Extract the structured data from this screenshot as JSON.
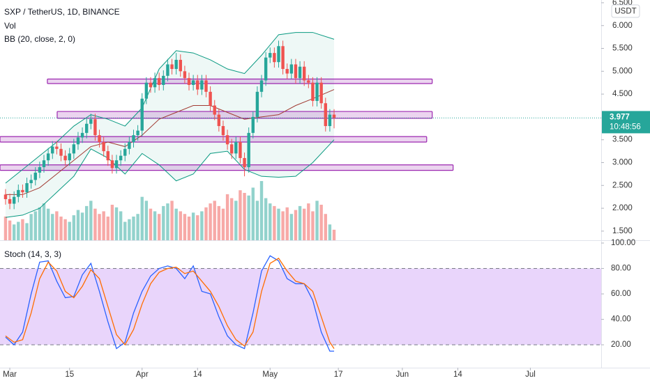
{
  "chart_data": [
    {
      "type": "candlestick",
      "title": "SXP / TetherUS, 1D, BINANCE",
      "currency": "USDT",
      "countdown": "10:48:56",
      "up_color": "#26a69a",
      "down_color": "#ef5350",
      "x": [
        -1,
        0,
        1,
        2,
        3,
        4,
        5,
        6,
        7,
        8,
        9,
        10,
        11,
        12,
        13,
        14,
        15,
        16,
        17,
        18,
        19,
        20,
        21,
        22,
        23,
        24,
        25,
        26,
        27,
        28,
        29,
        30,
        31,
        32,
        33,
        34,
        35,
        36,
        37,
        38,
        39,
        40,
        41,
        42,
        43,
        44,
        45,
        46,
        47,
        48,
        49,
        50,
        51,
        52,
        53,
        54,
        55,
        56,
        57,
        58,
        59,
        60,
        61,
        62,
        63,
        64,
        65,
        66,
        67,
        68,
        69,
        70,
        71,
        72,
        73,
        74,
        75,
        76
      ],
      "open": [
        2.3,
        2.2,
        2.1,
        2.25,
        2.4,
        2.35,
        2.55,
        2.62,
        2.78,
        2.9,
        3.05,
        3.2,
        3.35,
        3.3,
        3.15,
        3.05,
        3.2,
        3.4,
        3.55,
        3.65,
        3.85,
        3.95,
        3.6,
        3.45,
        3.25,
        3.05,
        2.88,
        3.05,
        3.15,
        3.3,
        3.45,
        3.6,
        3.7,
        4.4,
        4.75,
        4.65,
        4.85,
        4.7,
        4.9,
        5.15,
        5.05,
        5.25,
        5.0,
        4.85,
        4.7,
        4.8,
        4.6,
        4.8,
        4.55,
        4.25,
        4.05,
        3.8,
        3.6,
        3.4,
        3.2,
        3.45,
        3.1,
        2.9,
        3.65,
        4.0,
        4.55,
        4.8,
        5.3,
        5.4,
        5.2,
        5.55,
        5.05,
        4.95,
        5.15,
        4.85,
        5.1,
        4.8,
        4.75,
        4.35,
        4.75,
        4.3,
        3.8,
        4.05
      ],
      "high": [
        2.42,
        2.32,
        2.37,
        2.52,
        2.52,
        2.67,
        2.74,
        2.9,
        3.02,
        3.17,
        3.32,
        3.47,
        3.47,
        3.42,
        3.27,
        3.32,
        3.52,
        3.67,
        3.77,
        3.97,
        4.07,
        4.07,
        3.72,
        3.57,
        3.37,
        3.17,
        3.17,
        3.27,
        3.42,
        3.57,
        3.72,
        3.82,
        4.52,
        4.87,
        4.87,
        4.97,
        4.97,
        5.02,
        5.27,
        5.27,
        5.4,
        5.37,
        5.12,
        4.97,
        4.92,
        4.92,
        4.92,
        4.92,
        4.67,
        4.37,
        4.17,
        3.92,
        3.72,
        3.52,
        3.57,
        3.57,
        3.22,
        3.77,
        4.12,
        4.67,
        4.92,
        5.42,
        5.52,
        5.52,
        5.67,
        5.67,
        5.17,
        5.27,
        5.27,
        5.22,
        5.22,
        4.92,
        4.87,
        4.87,
        4.87,
        4.42,
        4.17,
        4.17
      ],
      "low": [
        2.08,
        1.98,
        1.98,
        2.13,
        2.23,
        2.23,
        2.43,
        2.5,
        2.66,
        2.78,
        2.93,
        3.08,
        3.18,
        3.03,
        2.93,
        2.93,
        3.08,
        3.28,
        3.43,
        3.53,
        3.73,
        3.48,
        3.33,
        3.13,
        2.93,
        2.76,
        2.76,
        2.93,
        3.03,
        3.18,
        3.33,
        3.48,
        3.58,
        4.28,
        4.53,
        4.53,
        4.58,
        4.58,
        4.78,
        4.93,
        4.93,
        4.88,
        4.73,
        4.58,
        4.58,
        4.48,
        4.48,
        4.43,
        4.13,
        3.93,
        3.68,
        3.48,
        3.28,
        3.08,
        3.08,
        2.98,
        2.7,
        2.78,
        3.53,
        3.88,
        4.43,
        4.68,
        5.18,
        5.08,
        5.08,
        4.93,
        4.83,
        4.83,
        4.73,
        4.73,
        4.68,
        4.63,
        4.23,
        4.23,
        4.18,
        3.68,
        3.68,
        3.75
      ],
      "close": [
        2.2,
        2.1,
        2.25,
        2.4,
        2.35,
        2.55,
        2.62,
        2.78,
        2.9,
        3.05,
        3.2,
        3.35,
        3.3,
        3.15,
        3.05,
        3.2,
        3.4,
        3.55,
        3.65,
        3.85,
        3.95,
        3.6,
        3.45,
        3.25,
        3.05,
        2.88,
        3.05,
        3.15,
        3.3,
        3.45,
        3.6,
        3.7,
        4.4,
        4.75,
        4.65,
        4.85,
        4.7,
        4.9,
        5.15,
        5.05,
        5.25,
        5.0,
        4.85,
        4.7,
        4.8,
        4.6,
        4.8,
        4.55,
        4.25,
        4.05,
        3.8,
        3.6,
        3.4,
        3.2,
        3.45,
        3.1,
        2.9,
        3.65,
        4.0,
        4.55,
        4.8,
        5.3,
        5.4,
        5.2,
        5.55,
        5.05,
        4.95,
        5.15,
        4.85,
        5.1,
        4.8,
        4.75,
        4.35,
        4.75,
        4.3,
        3.8,
        4.05,
        3.977
      ],
      "volume": {
        "name": "Vol",
        "values": [
          18,
          15,
          12,
          14,
          16,
          13,
          20,
          22,
          25,
          28,
          24,
          20,
          22,
          18,
          16,
          14,
          19,
          23,
          21,
          26,
          30,
          24,
          20,
          22,
          18,
          27,
          25,
          22,
          14,
          16,
          18,
          20,
          33,
          30,
          24,
          22,
          20,
          26,
          28,
          30,
          24,
          22,
          20,
          18,
          21,
          19,
          22,
          25,
          28,
          30,
          26,
          24,
          35,
          32,
          30,
          38,
          36,
          34,
          40,
          30,
          45,
          32,
          28,
          26,
          24,
          22,
          25,
          20,
          23,
          26,
          24,
          28,
          22,
          30,
          27,
          20,
          12,
          8
        ]
      },
      "bb": {
        "name": "BB (20, close, 2, 0)",
        "band_color": "#089981",
        "basis_color": "#a13b33",
        "x": [
          -1,
          3,
          7,
          11,
          15,
          19,
          23,
          27,
          31,
          35,
          39,
          43,
          47,
          51,
          55,
          59,
          63,
          67,
          71,
          76
        ],
        "upper": [
          2.55,
          2.85,
          3.15,
          3.45,
          3.8,
          4.05,
          3.95,
          3.8,
          4.2,
          5.05,
          5.45,
          5.4,
          5.25,
          5.05,
          4.95,
          5.35,
          5.8,
          5.85,
          5.85,
          5.7
        ],
        "basis": [
          2.3,
          2.3,
          2.45,
          2.75,
          3.05,
          3.35,
          3.45,
          3.35,
          3.6,
          3.95,
          4.1,
          4.25,
          4.25,
          4.1,
          3.95,
          4.0,
          4.05,
          4.25,
          4.4,
          4.6
        ],
        "lower": [
          1.8,
          1.85,
          2.0,
          2.35,
          2.7,
          3.3,
          3.1,
          2.75,
          3.2,
          2.95,
          2.6,
          2.75,
          3.2,
          3.25,
          2.85,
          2.7,
          2.68,
          2.7,
          3.0,
          3.5
        ]
      },
      "zones": [
        {
          "top": 4.83,
          "bottom": 4.73,
          "x0": 8.8,
          "x1": 99
        },
        {
          "top": 4.12,
          "bottom": 3.97,
          "x0": 11.1,
          "x1": 99
        },
        {
          "top": 3.57,
          "bottom": 3.45,
          "x0": -2.3,
          "x1": 97.7
        },
        {
          "top": 2.95,
          "bottom": 2.83,
          "x0": -2.3,
          "x1": 103.9
        }
      ],
      "zone_color": "#9c27b0",
      "xlim": [
        -2.3,
        138.6
      ],
      "ylim": [
        1.3,
        6.56
      ],
      "yticks": [
        {
          "value": 6.5,
          "label": "6.500"
        },
        {
          "value": 6,
          "label": "6.000"
        },
        {
          "value": 5.5,
          "label": "5.500"
        },
        {
          "value": 5,
          "label": "5.000"
        },
        {
          "value": 4.5,
          "label": "4.500"
        },
        {
          "value": 3.5,
          "label": "3.500"
        },
        {
          "value": 3,
          "label": "3.000"
        },
        {
          "value": 2.5,
          "label": "2.500"
        },
        {
          "value": 2,
          "label": "2.000"
        },
        {
          "value": 1.5,
          "label": "1.500"
        }
      ]
    },
    {
      "type": "line",
      "title": "Stoch (14, 3, 3)",
      "x": [
        -1,
        1,
        3,
        5,
        7,
        9,
        11,
        13,
        15,
        17,
        19,
        21,
        23,
        25,
        27,
        29,
        31,
        33,
        35,
        37,
        39,
        41,
        43,
        45,
        47,
        49,
        51,
        53,
        55,
        57,
        59,
        61,
        63,
        65,
        67,
        69,
        71,
        73,
        75,
        76
      ],
      "series": [
        {
          "color": "#2962ff",
          "values": [
            26,
            20,
            30,
            60,
            85,
            86,
            70,
            57,
            58,
            75,
            84,
            62,
            38,
            17,
            22,
            45,
            62,
            74,
            80,
            82,
            80,
            72,
            82,
            62,
            60,
            42,
            27,
            20,
            17,
            45,
            78,
            90,
            86,
            72,
            68,
            68,
            55,
            30,
            15,
            15
          ]
        },
        {
          "color": "#ff6d00",
          "values": [
            27,
            22,
            24,
            45,
            72,
            85,
            78,
            62,
            57,
            66,
            79,
            72,
            50,
            28,
            20,
            32,
            52,
            68,
            77,
            80,
            81,
            76,
            78,
            70,
            62,
            50,
            35,
            24,
            19,
            30,
            62,
            84,
            88,
            78,
            70,
            68,
            62,
            42,
            22,
            17
          ]
        }
      ],
      "band": [
        20,
        80
      ],
      "band_color": "#e9d5fb",
      "xlim": [
        -2.3,
        138.6
      ],
      "ylim": [
        2,
        100
      ],
      "yticks": [
        {
          "value": 100,
          "label": "100.00"
        },
        {
          "value": 80,
          "label": "80.00"
        },
        {
          "value": 60,
          "label": "60.00"
        },
        {
          "value": 40,
          "label": "40.00"
        },
        {
          "value": 20,
          "label": "20.00"
        }
      ],
      "xticks": [
        {
          "value": 0,
          "label": "Mar"
        },
        {
          "value": 14,
          "label": "15"
        },
        {
          "value": 31,
          "label": "Apr"
        },
        {
          "value": 44,
          "label": "14"
        },
        {
          "value": 61,
          "label": "May"
        },
        {
          "value": 77,
          "label": "17"
        },
        {
          "value": 92,
          "label": "Jun"
        },
        {
          "value": 105,
          "label": "14"
        },
        {
          "value": 122,
          "label": "Jul"
        }
      ]
    }
  ]
}
